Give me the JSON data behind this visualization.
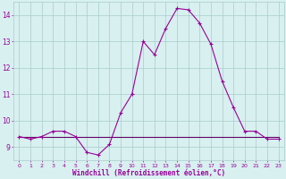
{
  "x": [
    0,
    1,
    2,
    3,
    4,
    5,
    6,
    7,
    8,
    9,
    10,
    11,
    12,
    13,
    14,
    15,
    16,
    17,
    18,
    19,
    20,
    21,
    22,
    23
  ],
  "y_main": [
    9.4,
    9.3,
    9.4,
    9.6,
    9.6,
    9.4,
    8.8,
    8.7,
    9.1,
    10.3,
    11.0,
    13.0,
    12.5,
    13.5,
    14.25,
    14.2,
    13.7,
    12.9,
    11.5,
    10.5,
    9.6,
    9.6,
    9.3,
    9.3
  ],
  "y_flat": [
    9.4,
    9.4,
    9.4,
    9.4,
    9.4,
    9.4,
    9.4,
    9.4,
    9.4,
    9.4,
    9.4,
    9.4,
    9.4,
    9.4,
    9.4,
    9.4,
    9.4,
    9.4,
    9.4,
    9.4,
    9.4,
    9.4,
    9.4,
    9.4
  ],
  "line_color": "#990099",
  "flat_color": "#660066",
  "bg_color": "#d8f0f0",
  "grid_color": "#aacccc",
  "text_color": "#990099",
  "xlabel": "Windchill (Refroidissement éolien,°C)",
  "xlim": [
    -0.5,
    23.5
  ],
  "ylim": [
    8.5,
    14.5
  ],
  "yticks": [
    9,
    10,
    11,
    12,
    13,
    14
  ],
  "xticks": [
    0,
    1,
    2,
    3,
    4,
    5,
    6,
    7,
    8,
    9,
    10,
    11,
    12,
    13,
    14,
    15,
    16,
    17,
    18,
    19,
    20,
    21,
    22,
    23
  ]
}
